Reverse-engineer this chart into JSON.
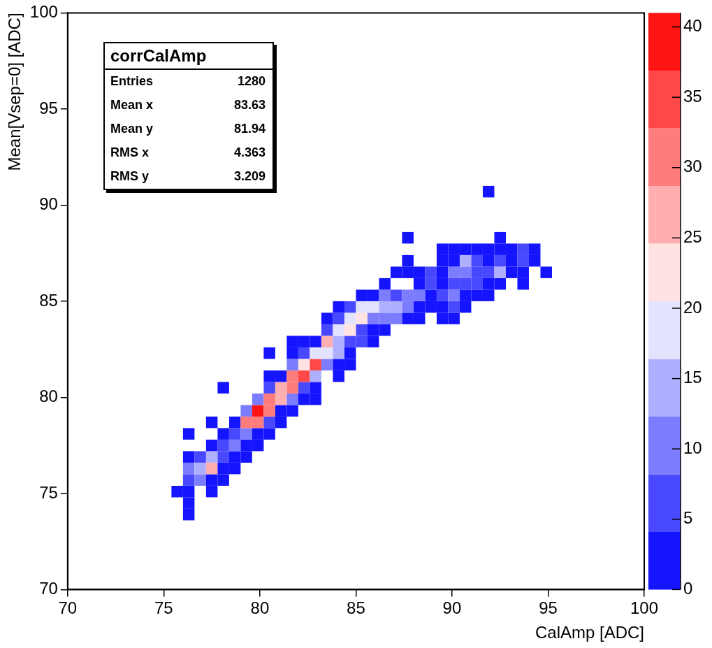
{
  "chart_data": {
    "type": "scatter",
    "xlabel": "CalAmp [ADC]",
    "ylabel": "Mean[Vsep=0] [ADC]",
    "marker": "square",
    "annotations": [
      "corrCalAmp",
      "Entries 1280",
      "Mean x 83.63",
      "Mean y 81.94",
      "RMS x 4.363",
      "RMS y 3.209"
    ],
    "xlim": [
      70,
      100
    ],
    "xticks": [
      70,
      75,
      80,
      85,
      90,
      95,
      100
    ],
    "ylim": [
      70,
      100
    ],
    "yticks": [
      70,
      75,
      80,
      85,
      90,
      95,
      100
    ],
    "clim": [
      0,
      41
    ],
    "cticks": [
      0,
      5,
      10,
      15,
      20,
      25,
      30,
      35,
      40
    ],
    "x": [
      76.3,
      76.3,
      75.7,
      76.3,
      77.5,
      76.3,
      76.9,
      77.5,
      78.1,
      76.3,
      76.9,
      77.5,
      78.1,
      78.7,
      76.3,
      76.9,
      77.5,
      78.1,
      78.7,
      79.3,
      77.5,
      78.1,
      78.7,
      79.3,
      79.9,
      76.3,
      78.1,
      78.7,
      79.3,
      79.9,
      80.5,
      77.5,
      78.7,
      79.3,
      79.9,
      80.5,
      81.1,
      79.3,
      79.9,
      80.5,
      81.1,
      81.7,
      79.9,
      80.5,
      81.1,
      81.7,
      82.3,
      82.9,
      78.1,
      80.5,
      81.1,
      81.7,
      82.3,
      82.9,
      80.5,
      81.1,
      81.7,
      82.3,
      82.9,
      84.1,
      81.7,
      82.3,
      82.9,
      83.5,
      84.1,
      84.7,
      80.5,
      81.7,
      82.3,
      82.9,
      83.5,
      84.1,
      84.7,
      81.7,
      82.3,
      82.9,
      83.5,
      84.1,
      84.7,
      85.3,
      85.9,
      83.5,
      84.1,
      84.7,
      85.3,
      85.9,
      86.5,
      83.5,
      84.1,
      84.7,
      85.3,
      85.9,
      86.5,
      87.1,
      87.7,
      88.3,
      89.5,
      90.1,
      84.1,
      84.7,
      85.3,
      85.9,
      86.5,
      87.1,
      87.7,
      88.3,
      88.9,
      89.5,
      90.1,
      90.7,
      85.3,
      85.9,
      86.5,
      87.1,
      87.7,
      88.3,
      88.9,
      89.5,
      90.1,
      90.7,
      91.3,
      91.9,
      86.5,
      88.3,
      88.9,
      89.5,
      90.1,
      90.7,
      91.3,
      91.9,
      92.5,
      93.7,
      87.1,
      87.7,
      88.3,
      88.9,
      89.5,
      90.1,
      90.7,
      91.3,
      91.9,
      92.5,
      93.1,
      93.7,
      94.9,
      87.7,
      89.5,
      90.1,
      90.7,
      91.3,
      91.9,
      92.5,
      93.1,
      93.7,
      94.3,
      89.5,
      90.1,
      90.7,
      91.3,
      91.9,
      92.5,
      93.1,
      93.7,
      94.3,
      87.7,
      92.5,
      91.9
    ],
    "values": [
      73.9,
      74.5,
      75.1,
      75.1,
      75.1,
      75.7,
      75.7,
      75.7,
      75.7,
      76.3,
      76.3,
      76.3,
      76.3,
      76.3,
      76.9,
      76.9,
      76.9,
      76.9,
      76.9,
      76.9,
      77.5,
      77.5,
      77.5,
      77.5,
      77.5,
      78.1,
      78.1,
      78.1,
      78.1,
      78.1,
      78.1,
      78.7,
      78.7,
      78.7,
      78.7,
      78.7,
      78.7,
      79.3,
      79.3,
      79.3,
      79.3,
      79.3,
      79.9,
      79.9,
      79.9,
      79.9,
      79.9,
      79.9,
      80.5,
      80.5,
      80.5,
      80.5,
      80.5,
      80.5,
      81.1,
      81.1,
      81.1,
      81.1,
      81.1,
      81.1,
      81.7,
      81.7,
      81.7,
      81.7,
      81.7,
      81.7,
      82.3,
      82.3,
      82.3,
      82.3,
      82.3,
      82.3,
      82.3,
      82.9,
      82.9,
      82.9,
      82.9,
      82.9,
      82.9,
      82.9,
      82.9,
      83.5,
      83.5,
      83.5,
      83.5,
      83.5,
      83.5,
      84.1,
      84.1,
      84.1,
      84.1,
      84.1,
      84.1,
      84.1,
      84.1,
      84.1,
      84.1,
      84.1,
      84.7,
      84.7,
      84.7,
      84.7,
      84.7,
      84.7,
      84.7,
      84.7,
      84.7,
      84.7,
      84.7,
      84.7,
      85.3,
      85.3,
      85.3,
      85.3,
      85.3,
      85.3,
      85.3,
      85.3,
      85.3,
      85.3,
      85.3,
      85.3,
      85.9,
      85.9,
      85.9,
      85.9,
      85.9,
      85.9,
      85.9,
      85.9,
      85.9,
      85.9,
      86.5,
      86.5,
      86.5,
      86.5,
      86.5,
      86.5,
      86.5,
      86.5,
      86.5,
      86.5,
      86.5,
      86.5,
      86.5,
      87.1,
      87.1,
      87.1,
      87.1,
      87.1,
      87.1,
      87.1,
      87.1,
      87.1,
      87.1,
      87.7,
      87.7,
      87.7,
      87.7,
      87.7,
      87.7,
      87.7,
      87.7,
      87.7,
      88.3,
      88.3,
      90.7
    ],
    "cvalues": [
      2,
      2,
      2,
      2,
      2,
      6,
      10,
      2,
      2,
      10,
      14,
      27,
      2,
      2,
      2,
      6,
      14,
      6,
      2,
      2,
      2,
      6,
      10,
      2,
      2,
      2,
      2,
      6,
      10,
      2,
      2,
      2,
      2,
      31,
      31,
      6,
      2,
      10,
      40,
      31,
      2,
      2,
      10,
      31,
      27,
      10,
      2,
      2,
      2,
      6,
      27,
      31,
      6,
      2,
      2,
      2,
      31,
      35,
      14,
      2,
      10,
      22,
      35,
      10,
      2,
      2,
      2,
      2,
      6,
      18,
      18,
      14,
      2,
      2,
      2,
      2,
      27,
      14,
      6,
      6,
      2,
      6,
      18,
      22,
      6,
      2,
      2,
      2,
      6,
      18,
      22,
      10,
      10,
      10,
      2,
      2,
      2,
      2,
      2,
      6,
      18,
      18,
      14,
      14,
      10,
      2,
      2,
      2,
      6,
      2,
      2,
      2,
      10,
      6,
      10,
      10,
      2,
      6,
      10,
      2,
      2,
      2,
      2,
      2,
      6,
      2,
      6,
      6,
      6,
      2,
      2,
      2,
      2,
      2,
      2,
      6,
      2,
      10,
      10,
      6,
      6,
      14,
      2,
      2,
      2,
      2,
      2,
      2,
      14,
      6,
      2,
      6,
      2,
      6,
      2,
      2,
      2,
      2,
      2,
      2,
      2,
      2,
      6,
      2,
      2,
      2,
      2
    ]
  }
}
